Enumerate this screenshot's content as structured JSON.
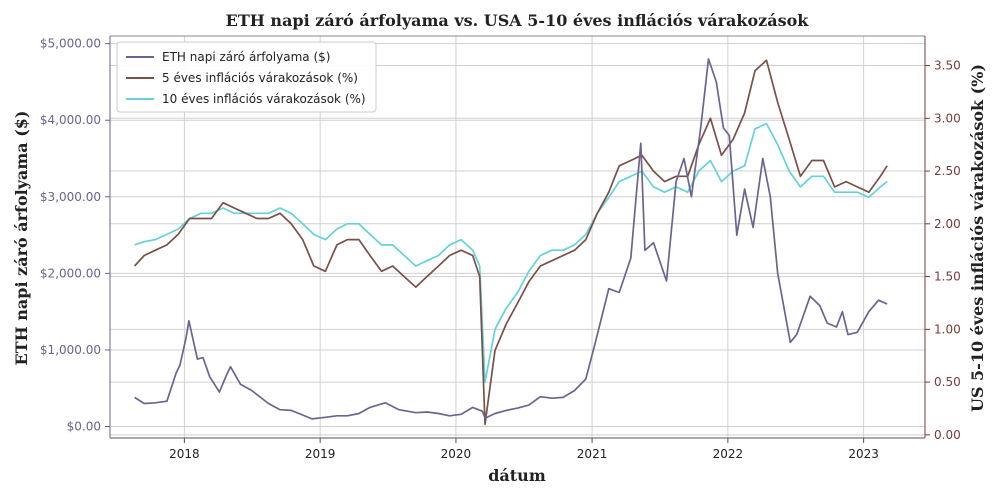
{
  "chart_data": {
    "type": "line",
    "title": "ETH napi záró árfolyama vs. USA 5-10 éves inflációs várakozások",
    "xlabel": "dátum",
    "ylabel_left": "ETH napi záró árfolyama ($)",
    "ylabel_right": "US 5-10 éves inflációs várakozások (%)",
    "grid": true,
    "legend_position": "top-left",
    "xlim": [
      "2017-06-15",
      "2023-06-15"
    ],
    "ylim_left": [
      -150,
      5100
    ],
    "ylim_right": [
      -0.03,
      3.78
    ],
    "x_ticks": [
      "2018",
      "2019",
      "2020",
      "2021",
      "2022",
      "2023"
    ],
    "y_left_ticks": [
      "$0.00",
      "$1,000.00",
      "$2,000.00",
      "$3,000.00",
      "$4,000.00",
      "$5,000.00"
    ],
    "y_right_ticks": [
      "0.00",
      "0.50",
      "1.00",
      "1.50",
      "2.00",
      "2.50",
      "3.00",
      "3.50"
    ],
    "colors": {
      "eth": "#6b6490",
      "five": "#7a5048",
      "ten": "#64d2da",
      "left_axis": "#6b6490",
      "right_axis": "#7a3a3a"
    },
    "series": [
      {
        "name": "ETH napi záró árfolyama ($)",
        "axis": "left",
        "x": [
          "2017-08-20",
          "2017-09-15",
          "2017-10-15",
          "2017-11-15",
          "2017-12-10",
          "2017-12-20",
          "2018-01-05",
          "2018-01-13",
          "2018-02-05",
          "2018-02-20",
          "2018-03-10",
          "2018-04-05",
          "2018-04-25",
          "2018-05-05",
          "2018-06-01",
          "2018-07-01",
          "2018-08-15",
          "2018-09-15",
          "2018-10-15",
          "2018-11-15",
          "2018-12-10",
          "2019-01-15",
          "2019-02-15",
          "2019-03-15",
          "2019-04-15",
          "2019-05-15",
          "2019-06-25",
          "2019-08-01",
          "2019-09-15",
          "2019-10-15",
          "2019-11-15",
          "2019-12-15",
          "2020-01-15",
          "2020-02-15",
          "2020-03-12",
          "2020-03-20",
          "2020-04-15",
          "2020-05-15",
          "2020-06-15",
          "2020-07-15",
          "2020-08-15",
          "2020-09-15",
          "2020-10-15",
          "2020-11-15",
          "2020-12-15",
          "2021-01-10",
          "2021-02-15",
          "2021-03-15",
          "2021-04-15",
          "2021-05-12",
          "2021-05-23",
          "2021-06-15",
          "2021-07-20",
          "2021-08-15",
          "2021-09-05",
          "2021-09-25",
          "2021-10-20",
          "2021-11-10",
          "2021-12-01",
          "2021-12-20",
          "2022-01-05",
          "2022-01-25",
          "2022-02-15",
          "2022-03-10",
          "2022-04-05",
          "2022-04-25",
          "2022-05-15",
          "2022-06-18",
          "2022-07-05",
          "2022-08-10",
          "2022-09-05",
          "2022-09-25",
          "2022-10-20",
          "2022-11-05",
          "2022-11-20",
          "2022-12-15",
          "2023-01-15",
          "2023-02-10",
          "2023-03-05"
        ],
        "values": [
          380,
          300,
          310,
          330,
          700,
          800,
          1150,
          1380,
          880,
          900,
          650,
          450,
          680,
          780,
          550,
          470,
          300,
          220,
          210,
          150,
          100,
          120,
          140,
          140,
          170,
          250,
          310,
          220,
          180,
          190,
          170,
          140,
          160,
          250,
          200,
          110,
          170,
          210,
          240,
          280,
          390,
          370,
          380,
          470,
          620,
          1100,
          1800,
          1750,
          2200,
          3700,
          2300,
          2400,
          1900,
          3200,
          3500,
          3000,
          3900,
          4800,
          4500,
          3900,
          3800,
          2500,
          3100,
          2600,
          3500,
          3000,
          2000,
          1100,
          1200,
          1700,
          1580,
          1350,
          1300,
          1500,
          1200,
          1230,
          1500,
          1650,
          1600
        ]
      },
      {
        "name": "5 éves inflációs várakozások (%)",
        "axis": "right",
        "x": [
          "2017-08-20",
          "2017-09-15",
          "2017-10-15",
          "2017-11-15",
          "2017-12-15",
          "2018-01-15",
          "2018-02-15",
          "2018-03-15",
          "2018-04-15",
          "2018-05-15",
          "2018-06-15",
          "2018-07-15",
          "2018-08-15",
          "2018-09-15",
          "2018-10-15",
          "2018-11-15",
          "2018-12-15",
          "2019-01-15",
          "2019-02-15",
          "2019-03-15",
          "2019-04-15",
          "2019-05-15",
          "2019-06-15",
          "2019-07-15",
          "2019-08-15",
          "2019-09-15",
          "2019-10-15",
          "2019-11-15",
          "2019-12-15",
          "2020-01-15",
          "2020-02-15",
          "2020-03-05",
          "2020-03-19",
          "2020-04-15",
          "2020-05-15",
          "2020-06-15",
          "2020-07-15",
          "2020-08-15",
          "2020-09-15",
          "2020-10-15",
          "2020-11-15",
          "2020-12-15",
          "2021-01-15",
          "2021-02-15",
          "2021-03-15",
          "2021-04-15",
          "2021-05-15",
          "2021-06-15",
          "2021-07-15",
          "2021-08-15",
          "2021-09-15",
          "2021-10-15",
          "2021-11-15",
          "2021-12-15",
          "2022-01-15",
          "2022-02-15",
          "2022-03-15",
          "2022-04-15",
          "2022-05-15",
          "2022-06-15",
          "2022-07-15",
          "2022-08-15",
          "2022-09-15",
          "2022-10-15",
          "2022-11-15",
          "2022-12-15",
          "2023-01-15",
          "2023-02-15",
          "2023-03-05"
        ],
        "values": [
          1.6,
          1.7,
          1.75,
          1.8,
          1.9,
          2.05,
          2.05,
          2.05,
          2.2,
          2.15,
          2.1,
          2.05,
          2.05,
          2.1,
          2.0,
          1.85,
          1.6,
          1.55,
          1.8,
          1.85,
          1.85,
          1.7,
          1.55,
          1.6,
          1.5,
          1.4,
          1.5,
          1.6,
          1.7,
          1.75,
          1.7,
          1.5,
          0.1,
          0.8,
          1.05,
          1.25,
          1.45,
          1.6,
          1.65,
          1.7,
          1.75,
          1.85,
          2.1,
          2.3,
          2.55,
          2.6,
          2.65,
          2.5,
          2.4,
          2.45,
          2.45,
          2.75,
          3.0,
          2.65,
          2.8,
          3.05,
          3.45,
          3.55,
          3.15,
          2.8,
          2.45,
          2.6,
          2.6,
          2.35,
          2.4,
          2.35,
          2.3,
          2.45,
          2.55
        ]
      },
      {
        "name": "10 éves inflációs várakozások (%)",
        "axis": "right",
        "x": [
          "2017-08-20",
          "2017-09-15",
          "2017-10-15",
          "2017-11-15",
          "2017-12-15",
          "2018-01-15",
          "2018-02-15",
          "2018-03-15",
          "2018-04-15",
          "2018-05-15",
          "2018-06-15",
          "2018-07-15",
          "2018-08-15",
          "2018-09-15",
          "2018-10-15",
          "2018-11-15",
          "2018-12-15",
          "2019-01-15",
          "2019-02-15",
          "2019-03-15",
          "2019-04-15",
          "2019-05-15",
          "2019-06-15",
          "2019-07-15",
          "2019-08-15",
          "2019-09-15",
          "2019-10-15",
          "2019-11-15",
          "2019-12-15",
          "2020-01-15",
          "2020-02-15",
          "2020-03-05",
          "2020-03-19",
          "2020-04-15",
          "2020-05-15",
          "2020-06-15",
          "2020-07-15",
          "2020-08-15",
          "2020-09-15",
          "2020-10-15",
          "2020-11-15",
          "2020-12-15",
          "2021-01-15",
          "2021-02-15",
          "2021-03-15",
          "2021-04-15",
          "2021-05-15",
          "2021-06-15",
          "2021-07-15",
          "2021-08-15",
          "2021-09-15",
          "2021-10-15",
          "2021-11-15",
          "2021-12-15",
          "2022-01-15",
          "2022-02-15",
          "2022-03-15",
          "2022-04-15",
          "2022-05-15",
          "2022-06-15",
          "2022-07-15",
          "2022-08-15",
          "2022-09-15",
          "2022-10-15",
          "2022-11-15",
          "2022-12-15",
          "2023-01-15",
          "2023-02-15",
          "2023-03-05"
        ],
        "values": [
          1.8,
          1.83,
          1.85,
          1.9,
          1.95,
          2.05,
          2.1,
          2.1,
          2.15,
          2.1,
          2.1,
          2.1,
          2.1,
          2.15,
          2.1,
          2.0,
          1.9,
          1.85,
          1.95,
          2.0,
          2.0,
          1.9,
          1.8,
          1.8,
          1.7,
          1.6,
          1.65,
          1.7,
          1.8,
          1.85,
          1.75,
          1.6,
          0.5,
          1.0,
          1.2,
          1.35,
          1.55,
          1.7,
          1.75,
          1.75,
          1.8,
          1.9,
          2.1,
          2.25,
          2.4,
          2.45,
          2.5,
          2.35,
          2.3,
          2.35,
          2.3,
          2.5,
          2.6,
          2.4,
          2.5,
          2.55,
          2.9,
          2.95,
          2.75,
          2.5,
          2.35,
          2.45,
          2.45,
          2.3,
          2.3,
          2.3,
          2.25,
          2.35,
          2.4
        ]
      }
    ]
  }
}
